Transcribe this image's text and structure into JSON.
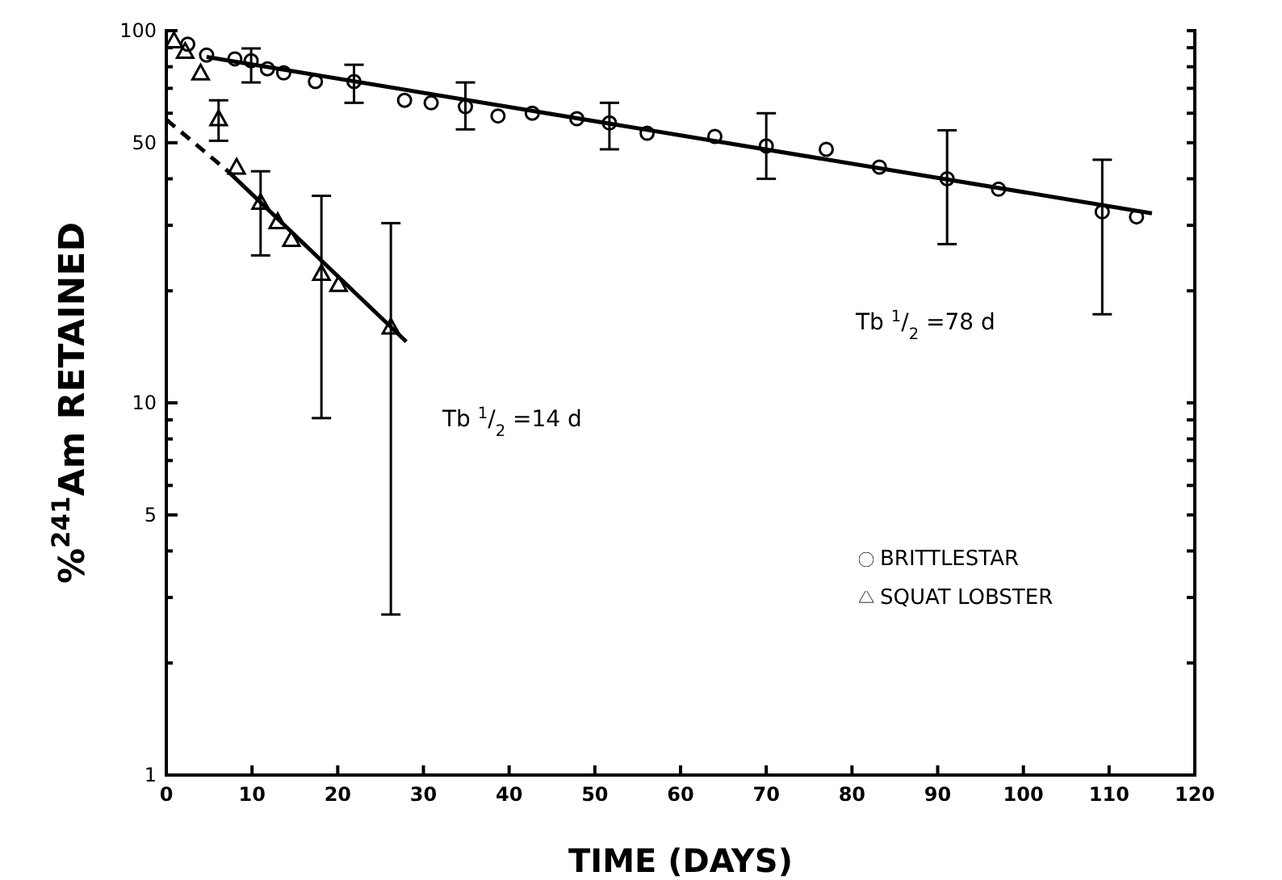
{
  "chart_data": {
    "type": "scatter",
    "xlabel": "TIME (DAYS)",
    "ylabel": "%$^{241}$Am RETAINED",
    "log": "y",
    "legend": "bottom right",
    "xlim": [
      0,
      120
    ],
    "xticks": [
      0,
      10,
      20,
      30,
      40,
      50,
      60,
      70,
      80,
      90,
      100,
      110,
      120
    ],
    "ylim": [
      1,
      100
    ],
    "yticks": [
      1,
      {
        "value": 2,
        "label": null
      },
      {
        "value": 3,
        "label": null
      },
      {
        "value": 4,
        "label": null
      },
      5,
      {
        "value": 6,
        "label": null
      },
      {
        "value": 7,
        "label": null
      },
      {
        "value": 8,
        "label": null
      },
      {
        "value": 9,
        "label": null
      },
      10,
      {
        "value": 20,
        "label": null
      },
      {
        "value": 30,
        "label": null
      },
      {
        "value": 40,
        "label": null
      },
      50,
      {
        "value": 60,
        "label": null
      },
      {
        "value": 70,
        "label": null
      },
      {
        "value": 80,
        "label": null
      },
      {
        "value": 90,
        "label": null
      },
      100
    ],
    "series": [
      {
        "name": "BRITTLESTAR",
        "marker": "circle",
        "color": "#000000",
        "x": [
          2.5,
          4.7,
          8.0,
          9.9,
          11.8,
          13.7,
          17.4,
          21.9,
          27.8,
          30.9,
          34.9,
          38.7,
          42.7,
          47.9,
          51.7,
          56.1,
          64,
          70,
          77,
          83.2,
          91.1,
          97.1,
          109.2,
          113.2
        ],
        "values": [
          92,
          86,
          84,
          83,
          79,
          77,
          73,
          73,
          65,
          64,
          62.5,
          59,
          60,
          58,
          56.5,
          53,
          52,
          49,
          48,
          43,
          40,
          37.5,
          32.6,
          31.6
        ],
        "errors": [
          null,
          null,
          null,
          [
            72.6,
            89.6
          ],
          null,
          null,
          null,
          [
            64,
            81
          ],
          null,
          null,
          [
            54.3,
            72.6
          ],
          null,
          null,
          null,
          [
            48,
            64
          ],
          null,
          null,
          [
            40,
            60
          ],
          null,
          null,
          [
            26.7,
            54
          ],
          null,
          [
            17.3,
            45
          ],
          null
        ]
      },
      {
        "name": "SQUAT LOBSTER",
        "marker": "triangle",
        "color": "#000000",
        "x": [
          0.9,
          2.2,
          4.0,
          6.1,
          8.2,
          11.0,
          13.0,
          14.6,
          18.1,
          20.1,
          26.2
        ],
        "values": [
          94,
          88,
          77,
          58,
          43,
          34.6,
          30.7,
          27.5,
          22.3,
          20.8,
          16
        ],
        "errors": [
          null,
          null,
          null,
          [
            50.6,
            65
          ],
          null,
          [
            24.9,
            41.9
          ],
          null,
          null,
          [
            9.1,
            36
          ],
          null,
          [
            2.7,
            30.4
          ]
        ]
      },
      {
        "type": "line",
        "line_style": "solid",
        "color": "#000000",
        "x": [
          4.7,
          115
        ],
        "values": [
          85,
          32.3
        ]
      },
      {
        "type": "line",
        "line_style": "dashed",
        "color": "#000000",
        "x": [
          0,
          7.2
        ],
        "values": [
          57.7,
          41.9
        ]
      },
      {
        "type": "line",
        "line_style": "solid",
        "color": "#000000",
        "x": [
          7.2,
          28
        ],
        "values": [
          41.9,
          14.6
        ]
      }
    ],
    "annotations": [
      "Tb $^{1}$/$_{2}$ =78 d",
      "Tb $^{1}$/$_{2}$ =14 d"
    ]
  }
}
